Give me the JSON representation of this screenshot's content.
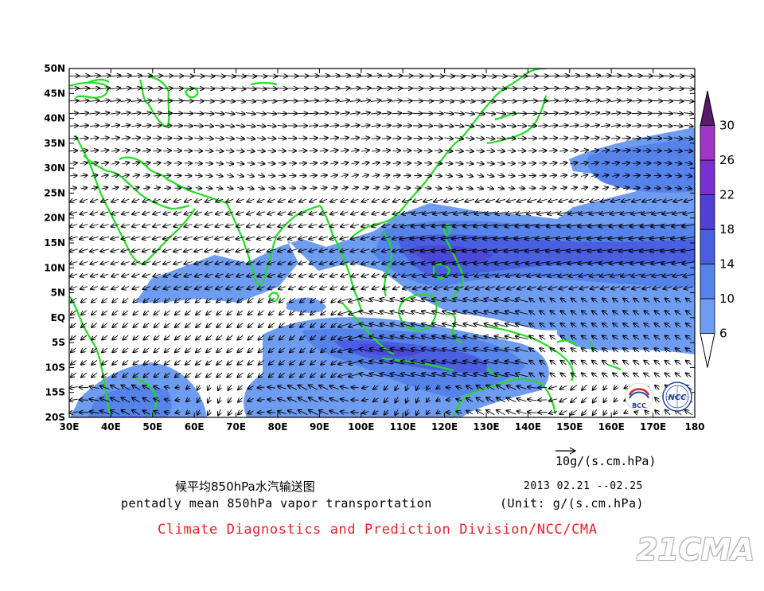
{
  "map": {
    "lat_labels": [
      "50N",
      "45N",
      "40N",
      "35N",
      "30N",
      "25N",
      "20N",
      "15N",
      "10N",
      "5N",
      "EQ",
      "5S",
      "10S",
      "15S",
      "20S"
    ],
    "lon_labels": [
      "30E",
      "40E",
      "50E",
      "60E",
      "70E",
      "80E",
      "90E",
      "100E",
      "110E",
      "120E",
      "130E",
      "140E",
      "150E",
      "160E",
      "170E",
      "180"
    ],
    "extent": {
      "lon": [
        30,
        180
      ],
      "lat": [
        -20,
        50
      ]
    },
    "coastline_color": "#22dd22",
    "vector_color": "#000000"
  },
  "colorbar": {
    "levels": [
      "6",
      "10",
      "14",
      "18",
      "22",
      "26",
      "30"
    ],
    "colors": [
      "#ffffff",
      "#6e9cf0",
      "#5583ea",
      "#4a5ee0",
      "#5040d8",
      "#7a2fd0",
      "#a035c8",
      "#5a1a6a"
    ]
  },
  "reference_vector": {
    "value": "10",
    "unit": "g/(s.cm.hPa)"
  },
  "title_cn": "候平均850hPa水汽输送图",
  "title_en": "pentadly mean 850hPa vapor transportation",
  "date_range": "2013  02.21 --02.25",
  "unit_note": "(Unit: g/(s.cm.hPa)",
  "credit": "Climate Diagnostics and Prediction Division/NCC/CMA",
  "logos": {
    "left": "BCC",
    "right": "NCC"
  },
  "watermark": "21CMA"
}
